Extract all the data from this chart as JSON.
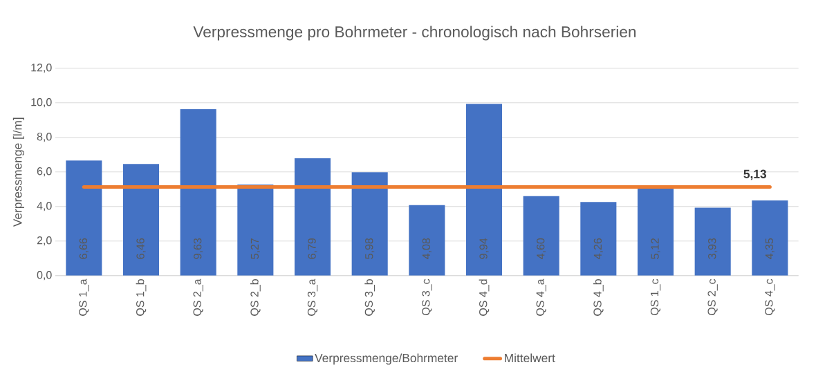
{
  "chart_data": {
    "type": "bar",
    "title": "Verpressmenge pro Bohrmeter - chronologisch nach Bohrserien",
    "ylabel": "Verpressmenge [l/m]",
    "categories": [
      "QS 1_a",
      "QS 1_b",
      "QS 2_a",
      "QS 2_b",
      "QS 3_a",
      "QS 3_b",
      "QS 3_c",
      "QS 4_d",
      "QS 4_a",
      "QS 4_b",
      "QS 1_c",
      "QS 2_c",
      "QS 4_c"
    ],
    "series": [
      {
        "name": "Verpressmenge/Bohrmeter",
        "color": "#4472c4",
        "values": [
          6.66,
          6.46,
          9.63,
          5.27,
          6.79,
          5.98,
          4.08,
          9.94,
          4.6,
          4.26,
          5.12,
          3.93,
          4.35
        ],
        "value_labels": [
          "6,66",
          "6,46",
          "9,63",
          "5,27",
          "6,79",
          "5,98",
          "4,08",
          "9,94",
          "4,60",
          "4,26",
          "5,12",
          "3,93",
          "4,35"
        ]
      },
      {
        "name": "Mittelwert",
        "type": "line",
        "color": "#ed7d31",
        "values": [
          5.13,
          5.13,
          5.13,
          5.13,
          5.13,
          5.13,
          5.13,
          5.13,
          5.13,
          5.13,
          5.13,
          5.13,
          5.13
        ],
        "value_labels": [
          null,
          null,
          null,
          null,
          null,
          null,
          null,
          null,
          null,
          null,
          null,
          null,
          "5,13"
        ]
      }
    ],
    "ylim": [
      0,
      12
    ],
    "yticks": [
      {
        "value": 0,
        "label": "0,0"
      },
      {
        "value": 2,
        "label": "2,0"
      },
      {
        "value": 4,
        "label": "4,0"
      },
      {
        "value": 6,
        "label": "6,0"
      },
      {
        "value": 8,
        "label": "8,0"
      },
      {
        "value": 10,
        "label": "10,0"
      },
      {
        "value": 12,
        "label": "12,0"
      }
    ],
    "grid": "y",
    "legend": "bottom"
  }
}
